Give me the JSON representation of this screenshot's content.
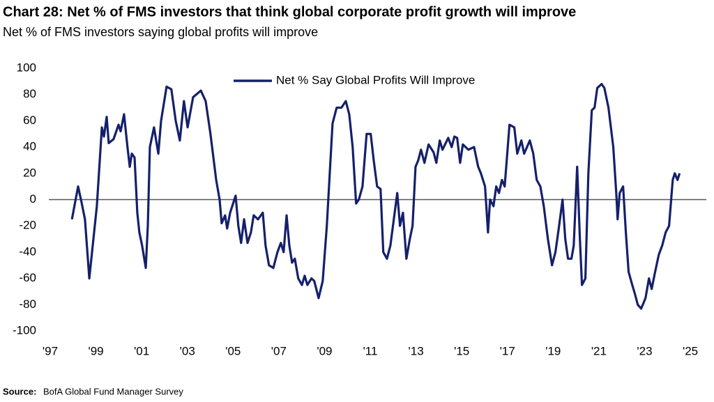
{
  "chart_data": {
    "type": "line",
    "title": "Chart 28: Net % of FMS investors that think global corporate profit growth will improve",
    "subtitle": "Net % of FMS investors saying global profits will improve",
    "source_label": "Source:",
    "source": "BofA Global Fund Manager Survey",
    "legend_position": "top",
    "x": [
      1997.95,
      1998.22,
      1998.37,
      1998.52,
      1998.71,
      1998.86,
      1999.04,
      1999.26,
      1999.35,
      1999.47,
      1999.56,
      1999.77,
      1999.99,
      2000.08,
      2000.23,
      2000.38,
      2000.48,
      2000.57,
      2000.69,
      2000.81,
      2000.9,
      2001.02,
      2001.18,
      2001.27,
      2001.36,
      2001.54,
      2001.73,
      2001.85,
      2002.09,
      2002.3,
      2002.49,
      2002.67,
      2002.85,
      2003.01,
      2003.25,
      2003.59,
      2003.8,
      2004.01,
      2004.26,
      2004.41,
      2004.5,
      2004.65,
      2004.74,
      2004.87,
      2005.11,
      2005.23,
      2005.35,
      2005.48,
      2005.63,
      2005.78,
      2005.9,
      2006.09,
      2006.3,
      2006.42,
      2006.57,
      2006.76,
      2006.94,
      2007.09,
      2007.21,
      2007.34,
      2007.46,
      2007.58,
      2007.7,
      2007.85,
      2008.01,
      2008.13,
      2008.25,
      2008.43,
      2008.55,
      2008.74,
      2008.92,
      2009.1,
      2009.26,
      2009.35,
      2009.53,
      2009.74,
      2009.93,
      2010.08,
      2010.23,
      2010.38,
      2010.5,
      2010.66,
      2010.84,
      2011.02,
      2011.15,
      2011.3,
      2011.45,
      2011.57,
      2011.73,
      2011.88,
      2012.03,
      2012.18,
      2012.3,
      2012.43,
      2012.58,
      2012.73,
      2012.85,
      2012.98,
      2013.1,
      2013.22,
      2013.37,
      2013.55,
      2013.77,
      2013.89,
      2014.04,
      2014.16,
      2014.41,
      2014.56,
      2014.68,
      2014.8,
      2014.93,
      2015.05,
      2015.29,
      2015.54,
      2015.72,
      2015.84,
      2016.02,
      2016.15,
      2016.24,
      2016.39,
      2016.51,
      2016.63,
      2016.76,
      2016.88,
      2017.09,
      2017.3,
      2017.43,
      2017.61,
      2017.73,
      2017.98,
      2018.13,
      2018.28,
      2018.44,
      2018.59,
      2018.77,
      2018.95,
      2019.1,
      2019.26,
      2019.41,
      2019.53,
      2019.65,
      2019.8,
      2019.9,
      2020.05,
      2020.17,
      2020.26,
      2020.41,
      2020.54,
      2020.69,
      2020.81,
      2020.93,
      2021.12,
      2021.24,
      2021.42,
      2021.63,
      2021.76,
      2021.82,
      2021.91,
      2022.06,
      2022.18,
      2022.3,
      2022.46,
      2022.58,
      2022.7,
      2022.85,
      2023.04,
      2023.19,
      2023.31,
      2023.46,
      2023.62,
      2023.77,
      2023.92,
      2024.07,
      2024.23,
      2024.32,
      2024.44,
      2024.53
    ],
    "series": [
      {
        "name": "Net % Say Global Profits Will Improve",
        "color": "#15206b",
        "values": [
          -15,
          10,
          -2,
          -15,
          -60,
          -35,
          -5,
          55,
          48,
          63,
          43,
          46,
          57,
          52,
          65,
          40,
          25,
          35,
          32,
          -10,
          -25,
          -35,
          -52,
          -20,
          40,
          55,
          35,
          60,
          86,
          84,
          60,
          45,
          75,
          55,
          78,
          83,
          75,
          50,
          15,
          0,
          -18,
          -12,
          -22,
          -10,
          3,
          -20,
          -33,
          -15,
          -33,
          -25,
          -12,
          -15,
          -10,
          -35,
          -50,
          -52,
          -40,
          -33,
          -40,
          -12,
          -35,
          -48,
          -45,
          -60,
          -65,
          -58,
          -65,
          -60,
          -62,
          -75,
          -62,
          -20,
          30,
          58,
          70,
          70,
          75,
          65,
          40,
          -3,
          0,
          10,
          50,
          50,
          30,
          10,
          8,
          -40,
          -45,
          -35,
          -15,
          5,
          -20,
          -10,
          -45,
          -30,
          -20,
          25,
          30,
          38,
          28,
          42,
          36,
          28,
          45,
          38,
          47,
          40,
          48,
          47,
          28,
          42,
          38,
          40,
          25,
          20,
          10,
          -25,
          0,
          -5,
          10,
          5,
          15,
          10,
          57,
          55,
          35,
          45,
          35,
          45,
          35,
          15,
          10,
          -5,
          -30,
          -50,
          -40,
          -20,
          0,
          -30,
          -45,
          -45,
          -35,
          25,
          -30,
          -65,
          -60,
          20,
          68,
          70,
          85,
          88,
          85,
          70,
          40,
          5,
          -15,
          5,
          10,
          -25,
          -55,
          -65,
          -72,
          -80,
          -83,
          -75,
          -60,
          -68,
          -55,
          -42,
          -35,
          -25,
          -20,
          15,
          20,
          15,
          20
        ]
      }
    ],
    "xlim": [
      1997,
      2025.7
    ],
    "xticks": [
      {
        "value": 1997,
        "label": "'97"
      },
      {
        "value": 1999,
        "label": "'99"
      },
      {
        "value": 2001,
        "label": "'01"
      },
      {
        "value": 2003,
        "label": "'03"
      },
      {
        "value": 2005,
        "label": "'05"
      },
      {
        "value": 2007,
        "label": "'07"
      },
      {
        "value": 2009,
        "label": "'09"
      },
      {
        "value": 2011,
        "label": "'11"
      },
      {
        "value": 2013,
        "label": "'13"
      },
      {
        "value": 2015,
        "label": "'15"
      },
      {
        "value": 2017,
        "label": "'17"
      },
      {
        "value": 2019,
        "label": "'19"
      },
      {
        "value": 2021,
        "label": "'21"
      },
      {
        "value": 2023,
        "label": "'23"
      },
      {
        "value": 2025,
        "label": "'25"
      }
    ],
    "ylim": [
      -100,
      100
    ],
    "yticks": [
      -100,
      -80,
      -60,
      -40,
      -20,
      0,
      20,
      40,
      60,
      80,
      100
    ],
    "grid": false
  }
}
